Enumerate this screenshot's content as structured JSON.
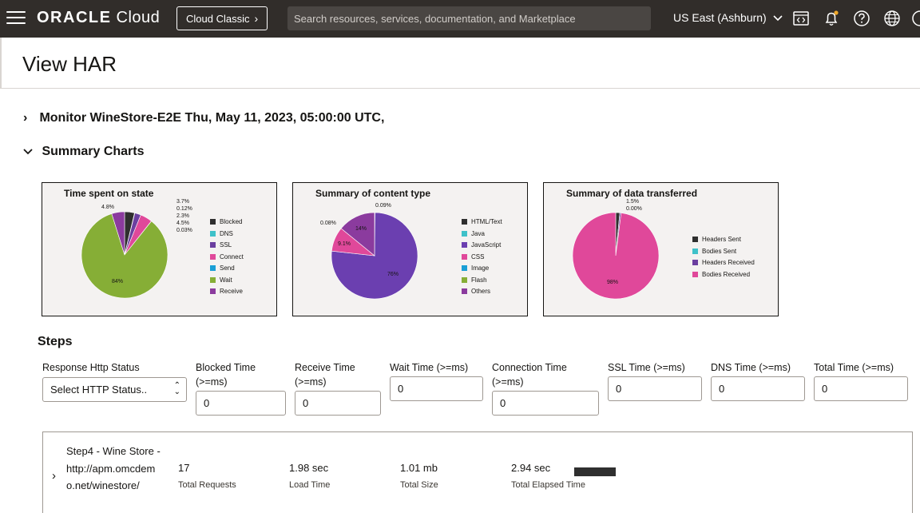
{
  "header": {
    "brand_strong": "ORACLE",
    "brand_light": "Cloud",
    "classic_label": "Cloud Classic",
    "search_placeholder": "Search resources, services, documentation, and Marketplace",
    "region": "US East (Ashburn)"
  },
  "page": {
    "title": "View HAR",
    "monitor_heading": "Monitor WineStore-E2E Thu, May 11, 2023, 05:00:00 UTC,",
    "summary_heading": "Summary Charts",
    "steps_heading": "Steps"
  },
  "charts": {
    "state": {
      "title": "Time spent on state",
      "legend": [
        "Blocked",
        "DNS",
        "SSL",
        "Connect",
        "Send",
        "Wait",
        "Receive"
      ],
      "labels": {
        "blocked": "3.7%",
        "dns": "0.12%",
        "ssl": "2.3%",
        "connect": "4.5%",
        "send": "0.03%",
        "wait": "84%",
        "receive": "4.8%"
      }
    },
    "content": {
      "title": "Summary of content type",
      "legend": [
        "HTML/Text",
        "Java",
        "JavaScript",
        "CSS",
        "Image",
        "Flash",
        "Others"
      ],
      "labels": {
        "html": "0.09%",
        "java": "0.08%",
        "css": "9.1%",
        "others": "14%",
        "javascript": "76%"
      }
    },
    "data": {
      "title": "Summary of data transferred",
      "legend": [
        "Headers Sent",
        "Bodies Sent",
        "Headers Received",
        "Bodies Received"
      ],
      "labels": {
        "headers_sent": "1.5%",
        "bodies_sent": "0.00%",
        "bodies_received": "98%"
      }
    }
  },
  "chart_data": [
    {
      "type": "pie",
      "title": "Time spent on state",
      "categories": [
        "Blocked",
        "DNS",
        "SSL",
        "Connect",
        "Send",
        "Wait",
        "Receive"
      ],
      "values": [
        3.7,
        0.12,
        2.3,
        4.5,
        0.03,
        84,
        4.8
      ],
      "colors": [
        "#2f2f2f",
        "#3fc1c9",
        "#6b3fa0",
        "#e0489a",
        "#1a9fd6",
        "#86ae36",
        "#8b3b9e"
      ]
    },
    {
      "type": "pie",
      "title": "Summary of content type",
      "categories": [
        "HTML/Text",
        "Java",
        "JavaScript",
        "CSS",
        "Image",
        "Flash",
        "Others"
      ],
      "values": [
        0.09,
        0.08,
        76,
        9.1,
        0,
        0,
        14
      ],
      "colors": [
        "#2f2f2f",
        "#3fc1c9",
        "#6b3fb0",
        "#e0489a",
        "#1a9fd6",
        "#86ae36",
        "#8b3b9e"
      ]
    },
    {
      "type": "pie",
      "title": "Summary of data transferred",
      "categories": [
        "Headers Sent",
        "Bodies Sent",
        "Headers Received",
        "Bodies Received"
      ],
      "values": [
        1.5,
        0.0,
        0.5,
        98
      ],
      "colors": [
        "#2f2f2f",
        "#3fc1c9",
        "#6b3fa0",
        "#e0489a"
      ]
    }
  ],
  "filters": {
    "status_label": "Response Http Status",
    "status_value": "Select HTTP Status..",
    "blocked_label": "Blocked Time (>=ms)",
    "receive_label": "Receive Time (>=ms)",
    "wait_label": "Wait Time (>=ms)",
    "connection_label": "Connection Time (>=ms)",
    "ssl_label": "SSL Time (>=ms)",
    "dns_label": "DNS Time (>=ms)",
    "total_label": "Total Time (>=ms)",
    "blocked_value": "0",
    "receive_value": "0",
    "wait_value": "0",
    "connection_value": "0",
    "ssl_value": "0",
    "dns_value": "0",
    "total_value": "0"
  },
  "step": {
    "name": "Step4 - Wine Store - http://apm.omcdemo.net/winestore/",
    "requests": "17",
    "requests_label": "Total Requests",
    "load": "1.98 sec",
    "load_label": "Load Time",
    "size": "1.01 mb",
    "size_label": "Total Size",
    "elapsed": "2.94 sec",
    "elapsed_label": "Total Elapsed Time"
  }
}
